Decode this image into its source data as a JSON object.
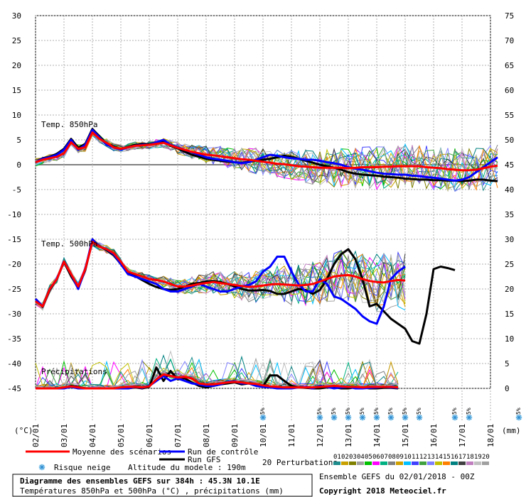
{
  "chart_data": {
    "type": "line",
    "title": "Diagramme des ensembles GEFS sur 384h : 45.3N 10.1E",
    "subtitle": "Températures 850hPa et 500hPa (°C) , précipitations (mm)",
    "left_axis": {
      "unit": "(°C)",
      "ylim": [
        -45,
        30
      ],
      "ticks": [
        30,
        25,
        20,
        15,
        10,
        5,
        0,
        -5,
        -10,
        -15,
        -20,
        -25,
        -30,
        -35,
        -40,
        -45
      ]
    },
    "right_axis": {
      "unit": "(mm)",
      "ylim": [
        0,
        75
      ],
      "ticks": [
        75,
        70,
        65,
        60,
        55,
        50,
        45,
        40,
        35,
        30,
        25,
        20,
        15,
        10,
        5,
        0
      ]
    },
    "x_ticks": [
      "02/01",
      "03/01",
      "04/01",
      "05/01",
      "06/01",
      "07/01",
      "08/01",
      "09/01",
      "10/01",
      "11/01",
      "12/01",
      "13/01",
      "14/01",
      "15/01",
      "16/01",
      "17/01",
      "18/01"
    ],
    "x_unit_step_hours": 6,
    "panel_labels": {
      "t850": "Temp. 850hPa",
      "t500": "Temp. 500hPa",
      "precip": "Précipitations"
    },
    "grid": true,
    "snow_markers": {
      "label": "5%",
      "positions": [
        32,
        40,
        42,
        44,
        46,
        48,
        50,
        52,
        54,
        59,
        61,
        68,
        70,
        77
      ]
    },
    "series": [
      {
        "name": "Moyenne des scénarios",
        "color": "#ff0000",
        "width": 3,
        "t850": [
          0.5,
          1,
          1.3,
          1.6,
          2.3,
          4.5,
          3.2,
          3.5,
          6.5,
          5.2,
          4.4,
          3.5,
          3.2,
          3.5,
          3.8,
          3.9,
          4,
          4.2,
          4.4,
          3.9,
          3.4,
          3.0,
          2.6,
          2.3,
          2.0,
          1.9,
          1.7,
          1.5,
          1.3,
          1.1,
          1.0,
          0.8,
          0.6,
          0.4,
          0.2,
          0.1,
          -0.1,
          -0.3,
          -0.4,
          -0.5,
          -0.6,
          -0.6,
          -0.6,
          -0.6,
          -0.7,
          -0.6,
          -0.5,
          -0.5,
          -0.5,
          -0.4,
          -0.4,
          -0.3,
          -0.3,
          -0.3,
          -0.3,
          -0.5,
          -0.6,
          -0.7,
          -0.9,
          -1.0,
          -1.1,
          -1.1,
          -1.0,
          -0.7,
          -0.4,
          -0.2
        ],
        "t500": [
          -27.5,
          -28.5,
          -25,
          -23,
          -19.5,
          -22,
          -24.5,
          -21,
          -15.5,
          -16.5,
          -17,
          -17.8,
          -19.5,
          -21.5,
          -22,
          -22.5,
          -23,
          -23.2,
          -23.5,
          -24,
          -24.5,
          -24.5,
          -24.3,
          -24,
          -23.8,
          -23.6,
          -23.8,
          -24,
          -24.2,
          -24.4,
          -24.6,
          -24.5,
          -24.3,
          -24.1,
          -24.0,
          -24.1,
          -24.2,
          -24.3,
          -24.2,
          -24.0,
          -23.5,
          -23.0,
          -22.5,
          -22.3,
          -22.2,
          -22.5,
          -23,
          -23.4,
          -23.6,
          -23.7,
          -23.4,
          -23.2,
          -23.3
        ],
        "precip": [
          0,
          0,
          0,
          0,
          0.2,
          0.4,
          0.2,
          0,
          0,
          0,
          0,
          0,
          0.2,
          0.3,
          0.3,
          0.2,
          0.4,
          1.8,
          2.8,
          2.5,
          2.2,
          2.3,
          2.0,
          1.0,
          0.8,
          0.8,
          1.0,
          1.2,
          1.3,
          1.2,
          1.0,
          0.9,
          0.6,
          0.4,
          0.3,
          0.2,
          0.2,
          0.2,
          0.2,
          0.2,
          0.3,
          0.4,
          0.5,
          0.4,
          0.3,
          0.3,
          0.2,
          0.3,
          0.3,
          0.3,
          0.3,
          0.2
        ]
      },
      {
        "name": "Run de contrôle",
        "color": "#0000ff",
        "width": 3,
        "t850": [
          0.5,
          1.2,
          1.5,
          2,
          3,
          5,
          3,
          4,
          7,
          5.5,
          4,
          3.5,
          3,
          3.5,
          3.8,
          4,
          4,
          4.5,
          5,
          4,
          3.5,
          3,
          2.5,
          2,
          1.5,
          1.2,
          1,
          0.8,
          0.5,
          0.3,
          0.5,
          1,
          1.5,
          2,
          1.8,
          1.5,
          1.3,
          1.2,
          1.0,
          1.0,
          0.8,
          0.5,
          0.3,
          0,
          -0.5,
          -0.8,
          -1,
          -1.3,
          -1.6,
          -1.8,
          -1.9,
          -2,
          -2,
          -2.2,
          -2.3,
          -2.5,
          -2.6,
          -2.8,
          -3,
          -3.2,
          -3.0,
          -2.5,
          -1.5,
          -0.5,
          0.5,
          1.5
        ],
        "t500": [
          -27,
          -28.5,
          -25,
          -23,
          -19.5,
          -22,
          -25,
          -21,
          -15,
          -16.5,
          -17,
          -18,
          -20,
          -22,
          -22.5,
          -23,
          -23.5,
          -24,
          -25,
          -25.5,
          -25.5,
          -25,
          -24.5,
          -24,
          -24.5,
          -25,
          -25.5,
          -25.5,
          -25,
          -24.5,
          -24.2,
          -23.5,
          -21.5,
          -20.5,
          -18.5,
          -18.5,
          -21.5,
          -24,
          -25.5,
          -25.5,
          -23,
          -24,
          -26.5,
          -27,
          -28,
          -29,
          -30.5,
          -31.5,
          -32,
          -28.5,
          -23,
          -21.5,
          -20.5
        ],
        "precip": [
          0,
          0,
          0,
          0,
          0,
          0.3,
          0,
          0,
          0,
          0,
          0,
          0,
          0,
          0,
          0.3,
          0.1,
          0.5,
          1.5,
          2.5,
          1.5,
          2,
          1.5,
          1,
          0.8,
          0.5,
          0.5,
          0.8,
          1.3,
          1.4,
          1,
          1,
          0.5,
          0.3,
          0.2,
          0,
          0,
          0,
          0.2,
          0.3,
          0,
          0.5,
          0.3,
          0,
          0.2,
          0.3,
          0,
          0,
          0.1,
          0.2,
          0.3,
          0.2,
          0.1
        ]
      },
      {
        "name": "Run GFS",
        "color": "#000000",
        "width": 3,
        "t850": [
          0.5,
          1.3,
          1.6,
          2.2,
          3.2,
          5.2,
          3.4,
          4.2,
          7.2,
          5.7,
          4.2,
          3.7,
          3.1,
          3.6,
          4.0,
          4.2,
          4.1,
          4.5,
          4.6,
          3.8,
          3.3,
          2.6,
          2.0,
          1.6,
          1.2,
          1.0,
          0.8,
          0.6,
          0.5,
          0.4,
          0.6,
          0.8,
          1.0,
          1.2,
          1.5,
          1.8,
          1.6,
          1.2,
          0.8,
          0.4,
          0.0,
          -0.3,
          -0.6,
          -1.0,
          -1.5,
          -1.8,
          -2.0,
          -2.1,
          -2.2,
          -2.4,
          -2.5,
          -2.6,
          -2.8,
          -2.9,
          -3.0,
          -3.0,
          -3.1,
          -3.1,
          -3.2,
          -3.2,
          -3.3,
          -3.2,
          -3.0,
          -3.0,
          -3.2,
          -3.3
        ],
        "t500": [
          -27,
          -28.6,
          -25.2,
          -23,
          -19.6,
          -22.4,
          -24.8,
          -21.2,
          -15.2,
          -16.4,
          -17.2,
          -18.2,
          -20,
          -21.6,
          -22.4,
          -23.2,
          -24,
          -24.6,
          -25,
          -25.2,
          -25,
          -24.5,
          -24,
          -23.8,
          -23.5,
          -23.4,
          -23.6,
          -24,
          -24.5,
          -25,
          -25.3,
          -25.3,
          -25.2,
          -25.4,
          -26,
          -26,
          -25.5,
          -25,
          -25.2,
          -26,
          -25.2,
          -23,
          -20,
          -18,
          -17,
          -19,
          -23,
          -28.5,
          -28,
          -29.5,
          -31,
          -32,
          -33,
          -35.5,
          -36,
          -30,
          -21,
          -20.5,
          -20.8,
          -21.2
        ],
        "precip": [
          0,
          0,
          0,
          0,
          0,
          0.5,
          0.3,
          0,
          0,
          0,
          0,
          0,
          0,
          0,
          0.2,
          0,
          0.3,
          4.2,
          1.5,
          3.5,
          1.8,
          2.0,
          1.2,
          0.5,
          0.2,
          0.5,
          0.8,
          1.0,
          1.2,
          0.8,
          1.0,
          0.8,
          0.4,
          2.6,
          2.6,
          1.5,
          0.5,
          0.2,
          0.1,
          0.0,
          0.0,
          0.2,
          0.2,
          0.0,
          0.0,
          0.2,
          0.2,
          0.0,
          0.0,
          0.1,
          0.1,
          0.0
        ]
      }
    ],
    "legend": {
      "mean": "Moyenne des scénarios",
      "control": "Run de contrôle",
      "gfs": "Run GFS",
      "snow": "Risque neige",
      "altitude": "Altitude du modele : 190m",
      "perturbations": "20 Perturbations",
      "perturbation_ids": [
        "01",
        "02",
        "03",
        "04",
        "05",
        "06",
        "07",
        "08",
        "09",
        "10",
        "11",
        "12",
        "13",
        "14",
        "15",
        "16",
        "17",
        "18",
        "19",
        "20"
      ],
      "perturbation_colors": [
        "#1e8c8c",
        "#c8a000",
        "#808000",
        "#a0a0a0",
        "#00c000",
        "#ff00ff",
        "#00b080",
        "#808080",
        "#d0a000",
        "#00c0ff",
        "#4040ff",
        "#40a040",
        "#8080ff",
        "#c0c000",
        "#ff8000",
        "#008080",
        "#404040",
        "#c080c0",
        "#c0c0c0",
        "#a0a0a0"
      ]
    },
    "footer": {
      "ensemble": "Ensemble GEFS du 02/01/2018 - 00Z",
      "copyright": "Copyright 2018 Meteociel.fr"
    }
  }
}
